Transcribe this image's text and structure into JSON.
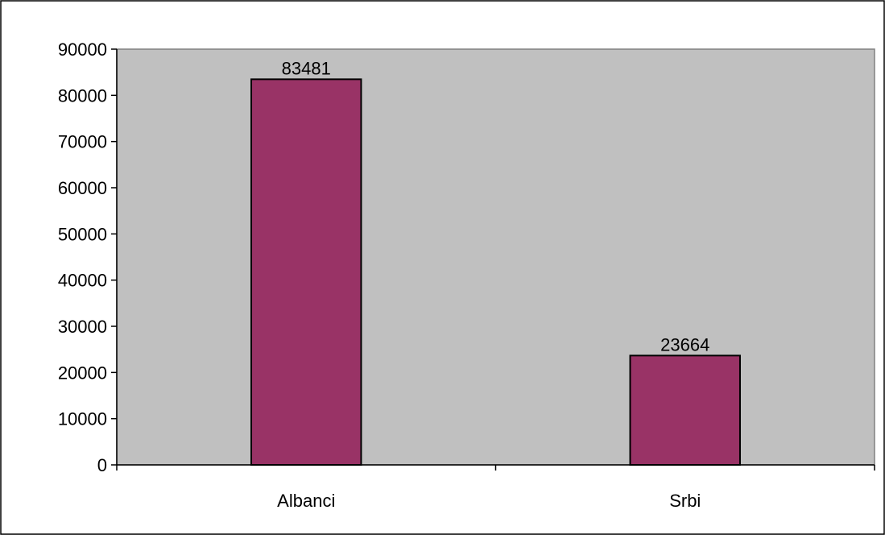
{
  "chart_data": {
    "type": "bar",
    "categories": [
      "Albanci",
      "Srbi"
    ],
    "values": [
      83481,
      23664
    ],
    "data_labels": [
      "83481",
      "23664"
    ],
    "title": "",
    "xlabel": "",
    "ylabel": "",
    "ylim": [
      0,
      90000
    ],
    "yticks": [
      0,
      10000,
      20000,
      30000,
      40000,
      50000,
      60000,
      70000,
      80000,
      90000
    ],
    "ytick_labels": [
      "0",
      "10000",
      "20000",
      "30000",
      "40000",
      "50000",
      "60000",
      "70000",
      "80000",
      "90000"
    ],
    "grid": false,
    "legend": "none",
    "colors": {
      "bar_fill": "#993366",
      "bar_stroke": "#000000",
      "plot_background": "#c0c0c0",
      "chart_background": "#ffffff",
      "border": "#000000"
    }
  }
}
